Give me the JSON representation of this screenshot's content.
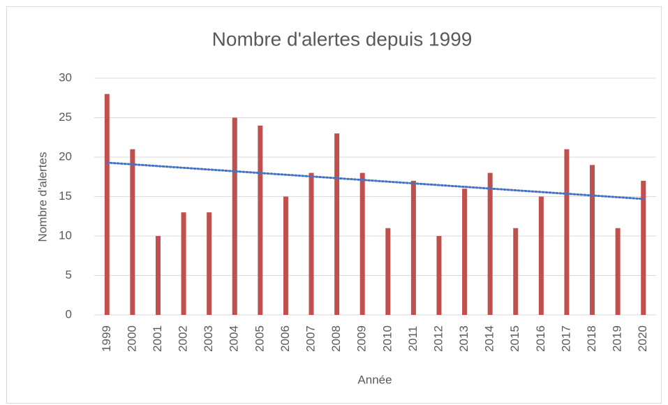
{
  "chart_data": {
    "type": "bar",
    "title": "Nombre d'alertes depuis 1999",
    "x_label": "Année",
    "y_label": "Nombre d'alertes",
    "categories": [
      "1999",
      "2000",
      "2001",
      "2002",
      "2003",
      "2004",
      "2005",
      "2006",
      "2007",
      "2008",
      "2009",
      "2010",
      "2011",
      "2012",
      "2013",
      "2014",
      "2015",
      "2016",
      "2017",
      "2018",
      "2019",
      "2020"
    ],
    "values": [
      28,
      21,
      10,
      13,
      13,
      25,
      24,
      15,
      18,
      23,
      18,
      11,
      17,
      10,
      16,
      18,
      11,
      15,
      21,
      19,
      11,
      17
    ],
    "color": "#c0504d",
    "ylim": [
      0,
      30
    ],
    "yticks": [
      0,
      5,
      10,
      15,
      20,
      25,
      30
    ],
    "grid": true,
    "trendline": {
      "kind": "linear",
      "color": "#4472c4",
      "style": "dotted"
    }
  }
}
